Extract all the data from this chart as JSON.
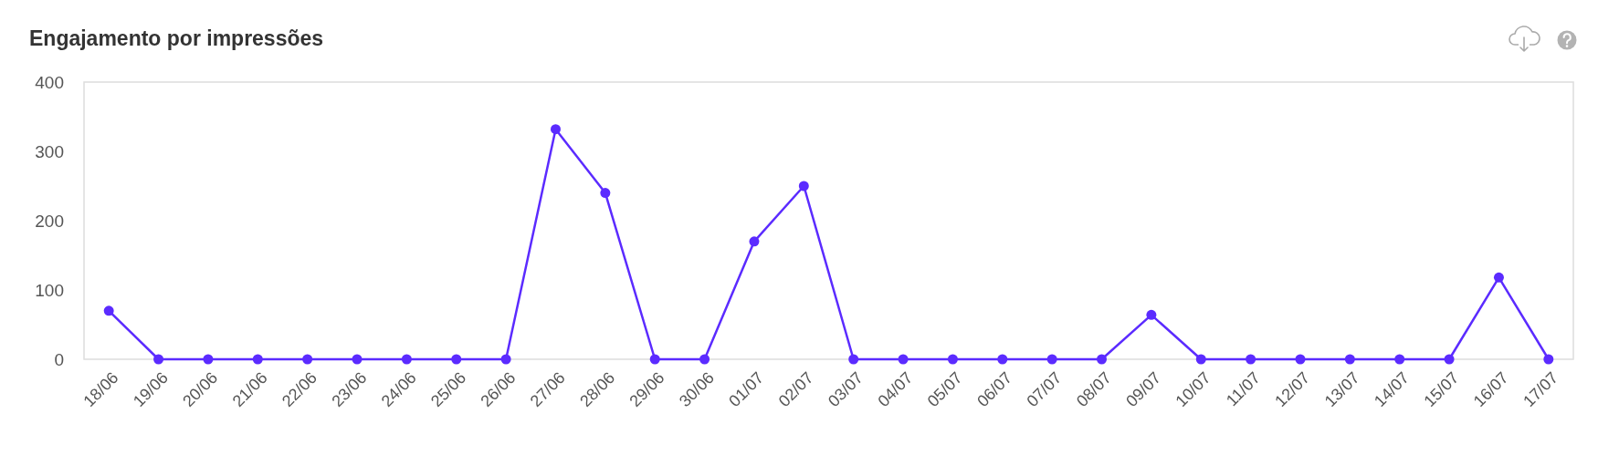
{
  "chart_data": {
    "type": "line",
    "title": "Engajamento por impressões",
    "categories": [
      "18/06",
      "19/06",
      "20/06",
      "21/06",
      "22/06",
      "23/06",
      "24/06",
      "25/06",
      "26/06",
      "27/06",
      "28/06",
      "29/06",
      "30/06",
      "01/07",
      "02/07",
      "03/07",
      "04/07",
      "05/07",
      "06/07",
      "07/07",
      "08/07",
      "09/07",
      "10/07",
      "11/07",
      "12/07",
      "13/07",
      "14/07",
      "15/07",
      "16/07",
      "17/07"
    ],
    "series": [
      {
        "color": "#5b2bff",
        "values": [
          70,
          0,
          0,
          0,
          0,
          0,
          0,
          0,
          0,
          332,
          240,
          0,
          0,
          170,
          250,
          0,
          0,
          0,
          0,
          0,
          0,
          64,
          0,
          0,
          0,
          0,
          0,
          0,
          118,
          0
        ]
      }
    ],
    "ylim": [
      0,
      400
    ],
    "yticks": [
      0,
      100,
      200,
      300,
      400
    ],
    "marker": "circle"
  }
}
